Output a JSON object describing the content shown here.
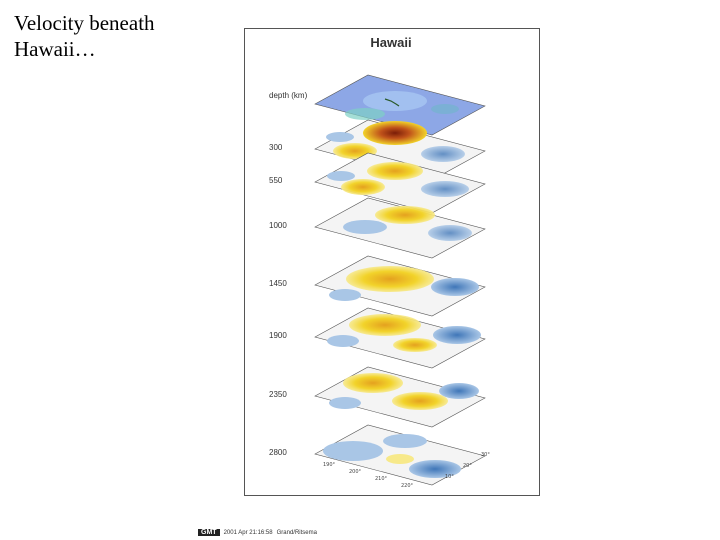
{
  "slide": {
    "title": "Velocity beneath Hawaii…"
  },
  "figure": {
    "title": "Hawaii",
    "depth_axis_label": "depth (km)",
    "layers": [
      {
        "depth": "",
        "style": "topography"
      },
      {
        "depth": "300",
        "style": "anomaly"
      },
      {
        "depth": "550",
        "style": "anomaly"
      },
      {
        "depth": "1000",
        "style": "anomaly"
      },
      {
        "depth": "1450",
        "style": "anomaly"
      },
      {
        "depth": "1900",
        "style": "anomaly"
      },
      {
        "depth": "2350",
        "style": "anomaly"
      },
      {
        "depth": "2800",
        "style": "anomaly"
      }
    ],
    "lon_ticks": [
      "190°",
      "200°",
      "210°",
      "220°"
    ],
    "lat_ticks": [
      "10°",
      "20°",
      "30°"
    ]
  },
  "stamp": {
    "badge": "GMT",
    "text": "2001 Apr 21:16:58",
    "author": "Grand/Ritsema"
  },
  "colors": {
    "slow": "#f2d32a",
    "slow_core": "#b3450f",
    "fast": "#5d8fc7",
    "neutral": "#f4f4f4",
    "topo": "#8da7e6"
  }
}
